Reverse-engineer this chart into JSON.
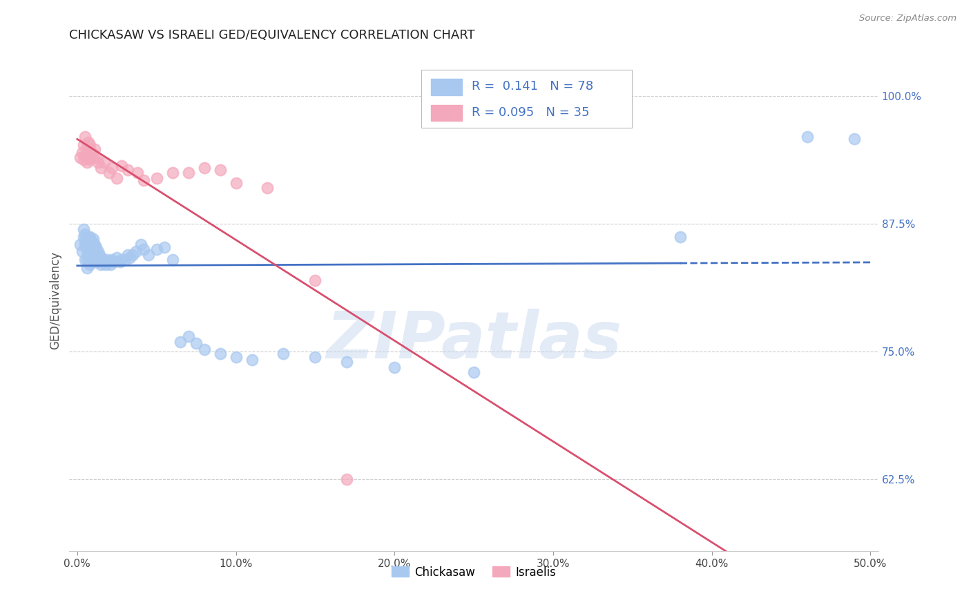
{
  "title": "CHICKASAW VS ISRAELI GED/EQUIVALENCY CORRELATION CHART",
  "source": "Source: ZipAtlas.com",
  "ylabel": "GED/Equivalency",
  "yticks_labels": [
    "62.5%",
    "75.0%",
    "87.5%",
    "100.0%"
  ],
  "ytick_values": [
    0.625,
    0.75,
    0.875,
    1.0
  ],
  "xticks_labels": [
    "0.0%",
    "10.0%",
    "20.0%",
    "30.0%",
    "40.0%",
    "50.0%"
  ],
  "xtick_values": [
    0.0,
    0.1,
    0.2,
    0.3,
    0.4,
    0.5
  ],
  "xlim": [
    -0.005,
    0.505
  ],
  "ylim": [
    0.555,
    1.045
  ],
  "chickasaw_R": 0.141,
  "chickasaw_N": 78,
  "israeli_R": 0.095,
  "israeli_N": 35,
  "chickasaw_color": "#a8c8f0",
  "israeli_color": "#f4a8bc",
  "trendline_chickasaw_color": "#4472c4",
  "trendline_israeli_color": "#d94f6e",
  "legend_text_color": "#4472c4",
  "watermark_color": "#c8d8f0",
  "chickasaw_x": [
    0.002,
    0.003,
    0.004,
    0.004,
    0.005,
    0.005,
    0.005,
    0.005,
    0.006,
    0.006,
    0.006,
    0.006,
    0.007,
    0.007,
    0.007,
    0.007,
    0.008,
    0.008,
    0.008,
    0.008,
    0.008,
    0.009,
    0.009,
    0.009,
    0.009,
    0.01,
    0.01,
    0.01,
    0.01,
    0.011,
    0.011,
    0.011,
    0.012,
    0.012,
    0.012,
    0.013,
    0.013,
    0.014,
    0.014,
    0.015,
    0.015,
    0.016,
    0.017,
    0.018,
    0.019,
    0.02,
    0.021,
    0.022,
    0.023,
    0.025,
    0.027,
    0.028,
    0.03,
    0.032,
    0.033,
    0.035,
    0.037,
    0.04,
    0.042,
    0.045,
    0.05,
    0.055,
    0.06,
    0.065,
    0.07,
    0.075,
    0.08,
    0.09,
    0.1,
    0.11,
    0.13,
    0.15,
    0.17,
    0.2,
    0.25,
    0.38,
    0.46,
    0.49
  ],
  "chickasaw_y": [
    0.855,
    0.848,
    0.862,
    0.87,
    0.855,
    0.865,
    0.858,
    0.84,
    0.855,
    0.848,
    0.84,
    0.832,
    0.862,
    0.858,
    0.852,
    0.845,
    0.862,
    0.855,
    0.848,
    0.84,
    0.835,
    0.858,
    0.852,
    0.845,
    0.838,
    0.86,
    0.853,
    0.847,
    0.84,
    0.855,
    0.848,
    0.84,
    0.852,
    0.845,
    0.838,
    0.848,
    0.84,
    0.845,
    0.838,
    0.842,
    0.835,
    0.84,
    0.838,
    0.835,
    0.84,
    0.838,
    0.835,
    0.84,
    0.838,
    0.842,
    0.838,
    0.84,
    0.84,
    0.845,
    0.842,
    0.845,
    0.848,
    0.855,
    0.85,
    0.845,
    0.85,
    0.852,
    0.84,
    0.76,
    0.765,
    0.758,
    0.752,
    0.748,
    0.745,
    0.742,
    0.748,
    0.745,
    0.74,
    0.735,
    0.73,
    0.862,
    0.96,
    0.958
  ],
  "israeli_x": [
    0.002,
    0.003,
    0.004,
    0.004,
    0.005,
    0.005,
    0.006,
    0.006,
    0.007,
    0.007,
    0.008,
    0.008,
    0.009,
    0.01,
    0.011,
    0.012,
    0.013,
    0.015,
    0.017,
    0.02,
    0.022,
    0.025,
    0.028,
    0.032,
    0.038,
    0.042,
    0.05,
    0.06,
    0.07,
    0.08,
    0.09,
    0.1,
    0.12,
    0.15,
    0.17
  ],
  "israeli_y": [
    0.94,
    0.945,
    0.938,
    0.952,
    0.942,
    0.96,
    0.935,
    0.95,
    0.94,
    0.955,
    0.938,
    0.952,
    0.945,
    0.94,
    0.948,
    0.94,
    0.935,
    0.93,
    0.935,
    0.925,
    0.93,
    0.92,
    0.932,
    0.928,
    0.925,
    0.918,
    0.92,
    0.925,
    0.925,
    0.93,
    0.928,
    0.915,
    0.91,
    0.82,
    0.625
  ]
}
